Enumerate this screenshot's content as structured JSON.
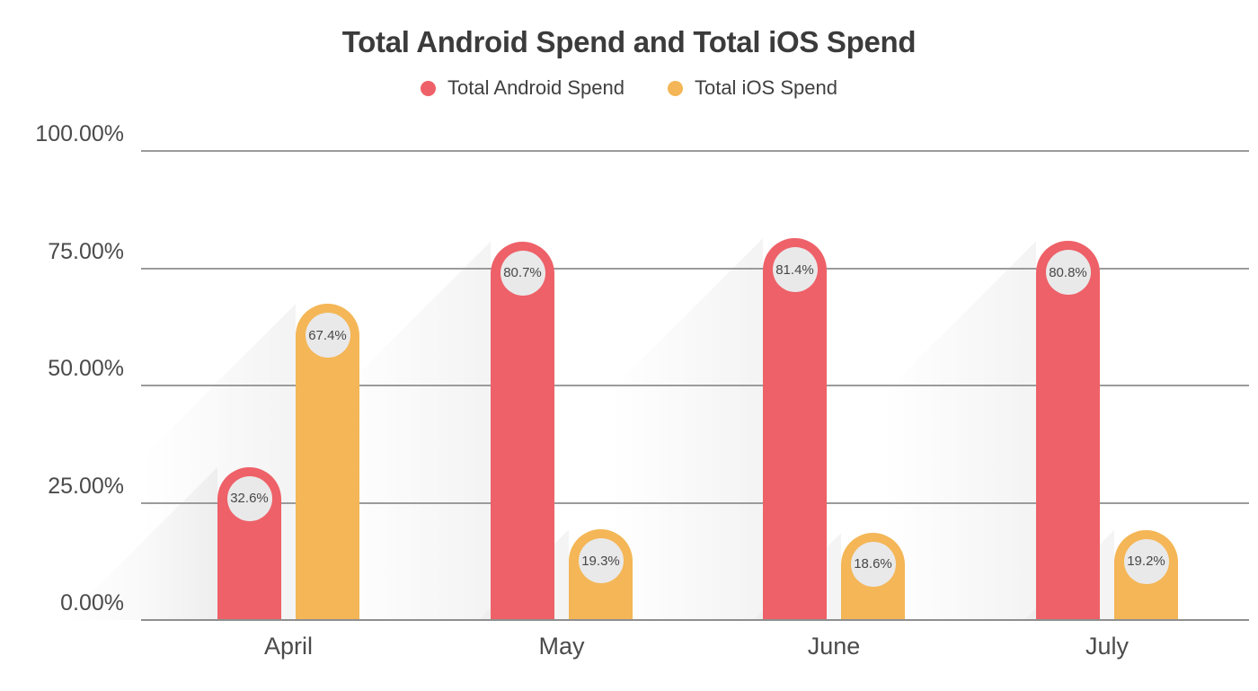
{
  "chart_data": {
    "type": "bar",
    "title": "Total Android Spend and Total iOS Spend",
    "categories": [
      "April",
      "May",
      "June",
      "July"
    ],
    "series": [
      {
        "name": "Total Android Spend",
        "color": "#ee6168",
        "values": [
          32.6,
          80.7,
          81.4,
          80.8
        ],
        "point_labels": [
          "32.6%",
          "80.7%",
          "81.4%",
          "80.8%"
        ]
      },
      {
        "name": "Total iOS Spend",
        "color": "#f4b656",
        "values": [
          67.4,
          19.3,
          18.6,
          19.2
        ],
        "point_labels": [
          "67.4%",
          "19.3%",
          "18.6%",
          "19.2%"
        ]
      }
    ],
    "ylim": [
      0,
      100
    ],
    "y_ticks": [
      {
        "value": 100,
        "label": "100.00%"
      },
      {
        "value": 75,
        "label": "75.00%"
      },
      {
        "value": 50,
        "label": "50.00%"
      },
      {
        "value": 25,
        "label": "25.00%"
      },
      {
        "value": 0,
        "label": "0.00%"
      }
    ],
    "grid": true,
    "legend_position": "top",
    "badge_color": "#e9e9ea"
  }
}
